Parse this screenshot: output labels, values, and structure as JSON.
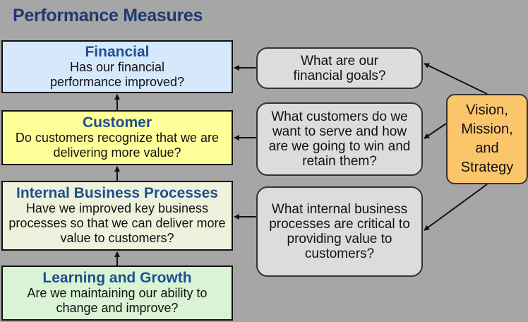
{
  "title": "Performance Measures",
  "perspectives": [
    {
      "heading": "Financial",
      "text": "Has our financial performance improved?"
    },
    {
      "heading": "Customer",
      "text": "Do customers recognize that we are delivering more value?"
    },
    {
      "heading": "Internal Business Processes",
      "text": "Have we improved key business processes so that we can deliver more value to customers?"
    },
    {
      "heading": "Learning and Growth",
      "text": "Are we maintaining our ability to change and improve?"
    }
  ],
  "questions": [
    "What are our financial goals?",
    "What customers do we want to serve and how are we going to win and retain them?",
    "What internal business processes are critical to providing value to customers?"
  ],
  "vision": "Vision, Mission, and Strategy"
}
